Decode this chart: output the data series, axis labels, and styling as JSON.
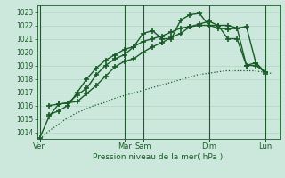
{
  "xlabel": "Pression niveau de la mer( hPa )",
  "background_color": "#cce8dc",
  "grid_color": "#aacfbf",
  "line_color": "#1a5c28",
  "ylim": [
    1013.5,
    1023.5
  ],
  "yticks": [
    1014,
    1015,
    1016,
    1017,
    1018,
    1019,
    1020,
    1021,
    1022,
    1023
  ],
  "x_day_labels": [
    "Ven",
    "Mar",
    "Sam",
    "Dim",
    "Lun"
  ],
  "x_day_positions": [
    0,
    9,
    11,
    18,
    24
  ],
  "xlim": [
    -0.3,
    25.5
  ],
  "series": [
    {
      "x": [
        0,
        0.8,
        1.8,
        2.8,
        3.8,
        4.8,
        5.8,
        6.8,
        7.8,
        8.8,
        9.8,
        10.8,
        11.8,
        12.8,
        13.8,
        14.8,
        15.8,
        16.8,
        17.8,
        18.8,
        19.8,
        20.8,
        21.8,
        22.8,
        23.8,
        24.8
      ],
      "y": [
        1013.5,
        1014.0,
        1014.5,
        1015.0,
        1015.4,
        1015.7,
        1016.0,
        1016.2,
        1016.5,
        1016.7,
        1016.9,
        1017.1,
        1017.3,
        1017.5,
        1017.7,
        1017.9,
        1018.1,
        1018.3,
        1018.4,
        1018.5,
        1018.6,
        1018.6,
        1018.6,
        1018.6,
        1018.5,
        1018.4
      ],
      "style": "-",
      "marker": null,
      "lw": 0.9,
      "dotted": true
    },
    {
      "x": [
        0,
        1,
        2,
        3,
        4,
        5,
        6,
        7,
        8,
        9,
        10,
        11,
        12,
        13,
        14,
        15,
        16,
        17,
        18,
        19,
        20,
        21,
        22,
        23,
        24
      ],
      "y": [
        1013.6,
        1015.2,
        1016.1,
        1016.2,
        1016.3,
        1016.9,
        1017.5,
        1018.2,
        1018.9,
        1019.3,
        1019.5,
        1020.0,
        1020.4,
        1020.7,
        1021.1,
        1021.4,
        1021.9,
        1022.1,
        1022.3,
        1022.0,
        1021.0,
        1021.0,
        1019.0,
        1019.2,
        1018.4
      ],
      "style": "-",
      "marker": "+",
      "markersize": 4,
      "lw": 1.0
    },
    {
      "x": [
        1,
        2,
        3,
        4,
        5,
        6,
        7,
        8,
        9,
        10,
        11,
        12,
        13,
        14,
        15,
        16,
        17,
        18,
        19,
        20,
        21,
        22,
        23,
        24
      ],
      "y": [
        1016.0,
        1016.1,
        1016.2,
        1016.8,
        1017.3,
        1018.3,
        1019.0,
        1019.5,
        1019.8,
        1020.4,
        1020.8,
        1021.0,
        1021.2,
        1021.5,
        1021.8,
        1021.9,
        1022.0,
        1022.0,
        1022.0,
        1022.0,
        1021.8,
        1021.9,
        1019.2,
        1018.5
      ],
      "style": "-",
      "marker": "+",
      "markersize": 4,
      "lw": 1.0
    },
    {
      "x": [
        1,
        2,
        3,
        4,
        5,
        6,
        7,
        8,
        9,
        10,
        11,
        12,
        13,
        14,
        15,
        16,
        17,
        18,
        19,
        20,
        21,
        22,
        23,
        24
      ],
      "y": [
        1015.3,
        1015.6,
        1016.0,
        1017.0,
        1018.0,
        1018.8,
        1019.4,
        1019.8,
        1020.2,
        1020.4,
        1021.4,
        1021.6,
        1021.0,
        1021.0,
        1022.4,
        1022.8,
        1022.9,
        1022.0,
        1021.8,
        1021.7,
        1021.8,
        1019.0,
        1019.0,
        1018.5
      ],
      "style": "-",
      "marker": "+",
      "markersize": 4,
      "lw": 1.0
    }
  ]
}
